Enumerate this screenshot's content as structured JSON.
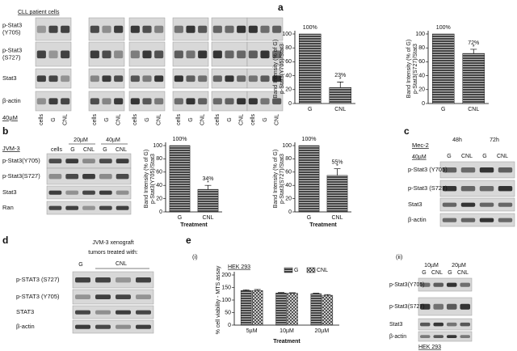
{
  "panel_a": {
    "label": "a",
    "subtitle": "CLL patient cells",
    "rows": [
      [
        "p-Stat3",
        "(Y705)"
      ],
      [
        "p-Stat3",
        "(S727)"
      ],
      [
        "Stat3"
      ],
      [
        "β-actin"
      ]
    ],
    "dose": "40µM",
    "lanes": [
      "cells",
      "G",
      "CNL"
    ]
  },
  "panel_b": {
    "label": "b",
    "cell_line": "JVM-3",
    "doses": [
      "20µM",
      "40µM"
    ],
    "lanes": [
      "cells",
      "G",
      "CNL",
      "G",
      "CNL"
    ],
    "rows": [
      "p-Stat3(Y705)",
      "p-Stat3(S727)",
      "Stat3",
      "Ran"
    ]
  },
  "panel_c": {
    "label": "c",
    "cell_line": "Mec-2",
    "times": [
      "48h",
      "72h"
    ],
    "dose": "40µM",
    "lanes": [
      "G",
      "CNL",
      "G",
      "CNL"
    ],
    "rows": [
      "p-Stat3 (Y705)",
      "p-Stat3 (S727)",
      "Stat3",
      "β-actin"
    ]
  },
  "panel_d": {
    "label": "d",
    "caption": [
      "JVM-3 xenograft",
      "tumors treated with:"
    ],
    "lanes": [
      "G",
      "CNL"
    ],
    "rows": [
      "p-STAT3 (S727)",
      "p-STAT3 (Y705)",
      "STAT3",
      "β-actin"
    ]
  },
  "panel_e": {
    "label": "e",
    "sub1": "(i)",
    "sub2": "(ii)",
    "doses": [
      "10µM",
      "20µM"
    ],
    "lanes": [
      "G",
      "CNL",
      "G",
      "CNL"
    ],
    "rows": [
      "p-Stat3(Y705)",
      "p-Stat3(S727)",
      "Stat3",
      "β-actin"
    ],
    "cell_line": "HEK 293"
  },
  "chart_data": [
    {
      "type": "bar",
      "ylabel": [
        "Band Intensity (% of G)",
        "p-Stat3(Y705)/Stat3"
      ],
      "categories": [
        "G",
        "CNL"
      ],
      "values": [
        100,
        23
      ],
      "errors": [
        0,
        8
      ],
      "value_labels": [
        "100%",
        "23%"
      ],
      "annotation": "*",
      "color": "#555555",
      "ylim": [
        0,
        100
      ],
      "yticks": [
        0,
        20,
        40,
        60,
        80,
        100
      ]
    },
    {
      "type": "bar",
      "ylabel": [
        "Band Intensity (% of G)",
        "p-Stat3(S727)/Stat3"
      ],
      "categories": [
        "G",
        "CNL"
      ],
      "values": [
        100,
        72
      ],
      "errors": [
        0,
        6
      ],
      "value_labels": [
        "100%",
        "72%"
      ],
      "annotation": "*",
      "color": "#555555",
      "ylim": [
        0,
        100
      ],
      "yticks": [
        0,
        20,
        40,
        60,
        80,
        100
      ]
    },
    {
      "type": "bar",
      "ylabel": [
        "Band Intensity (% of G)",
        "p-Stat3(Y705)/Stat3"
      ],
      "categories": [
        "G",
        "CNL"
      ],
      "values": [
        100,
        34
      ],
      "errors": [
        0,
        6
      ],
      "value_labels": [
        "100%",
        "34%"
      ],
      "annotation": "*",
      "xlabel": "Treatment",
      "color": "#555555",
      "ylim": [
        0,
        100
      ],
      "yticks": [
        0,
        20,
        40,
        60,
        80,
        100
      ]
    },
    {
      "type": "bar",
      "ylabel": [
        "Band Intensity (% of G)",
        "p-Stat3(S727)/Stat3"
      ],
      "categories": [
        "G",
        "CNL"
      ],
      "values": [
        100,
        55
      ],
      "errors": [
        0,
        10
      ],
      "value_labels": [
        "100%",
        "55%"
      ],
      "annotation": "*",
      "xlabel": "Treatment",
      "color": "#555555",
      "ylim": [
        0,
        100
      ],
      "yticks": [
        0,
        20,
        40,
        60,
        80,
        100
      ]
    },
    {
      "type": "grouped_bar",
      "title": "HEK 293",
      "ylabel": [
        "% cell viability - MTS assay"
      ],
      "xlabel": "Treatment",
      "categories": [
        "5µM",
        "10µM",
        "20µM"
      ],
      "series": [
        {
          "name": "G",
          "color": "#555555",
          "values": [
            138,
            128,
            125
          ],
          "errors": [
            3,
            2,
            2
          ]
        },
        {
          "name": "CNL",
          "color": "#777777",
          "values": [
            138,
            127,
            119
          ],
          "errors": [
            4,
            2,
            3
          ]
        }
      ],
      "ylim": [
        0,
        200
      ],
      "yticks": [
        0,
        50,
        100,
        150,
        200
      ]
    }
  ]
}
